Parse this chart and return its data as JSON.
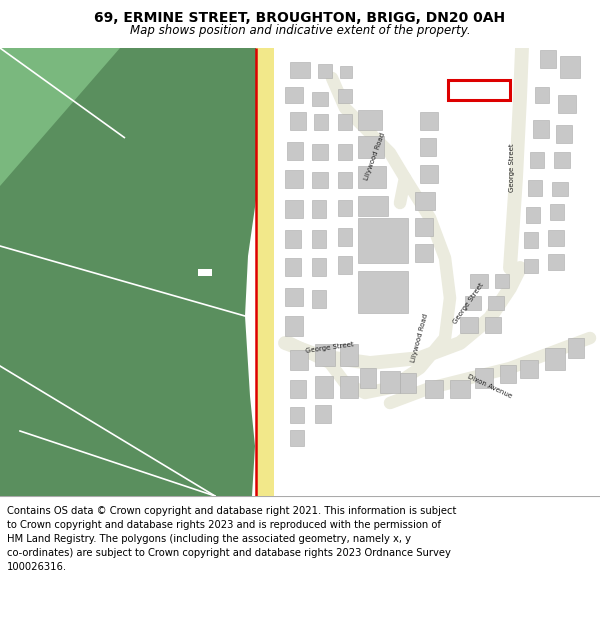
{
  "title": "69, ERMINE STREET, BROUGHTON, BRIGG, DN20 0AH",
  "subtitle": "Map shows position and indicative extent of the property.",
  "footer": "Contains OS data © Crown copyright and database right 2021. This information is subject\nto Crown copyright and database rights 2023 and is reproduced with the permission of\nHM Land Registry. The polygons (including the associated geometry, namely x, y\nco-ordinates) are subject to Crown copyright and database rights 2023 Ordnance Survey\n100026316.",
  "map_bg": "#f0ede0",
  "green_color": "#5a8f5e",
  "building_color": "#c8c8c8",
  "building_edge": "#aaaaaa",
  "red_line_color": "#dd0000",
  "yellow_road": "#f2e88a",
  "property_outline": "#dd0000",
  "road_bg": "#f0ede0",
  "title_fontsize": 10,
  "subtitle_fontsize": 8.5,
  "footer_fontsize": 7.2
}
